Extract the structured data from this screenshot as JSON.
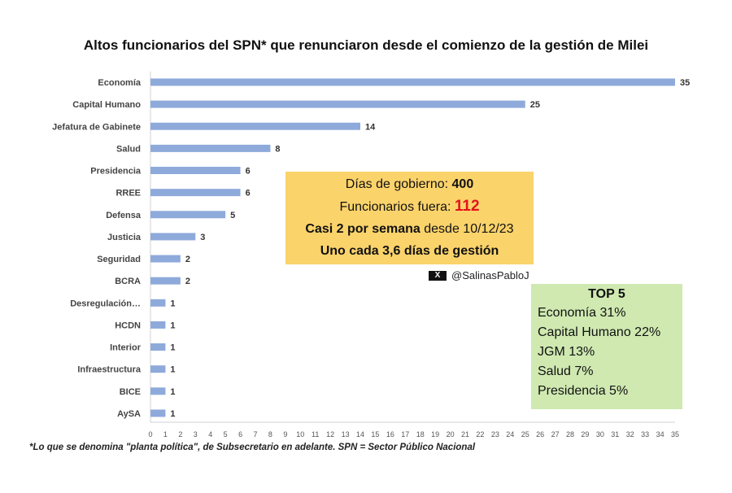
{
  "title": "Altos funcionarios del SPN* que renunciaron desde el comienzo de la gestión de Milei",
  "footnote": "*Lo que se denomina \"planta política\", de Subsecretario en adelante. SPN = Sector Público Nacional",
  "chart_data": {
    "type": "bar",
    "orientation": "horizontal",
    "categories": [
      "Economía",
      "Capital Humano",
      "Jefatura de Gabinete",
      "Salud",
      "Presidencia",
      "RREE",
      "Defensa",
      "Justicia",
      "Seguridad",
      "BCRA",
      "Desregulación…",
      "HCDN",
      "Interior",
      "Infraestructura",
      "BICE",
      "AySA"
    ],
    "values": [
      35,
      25,
      14,
      8,
      6,
      6,
      5,
      3,
      2,
      2,
      1,
      1,
      1,
      1,
      1,
      1
    ],
    "xlim": [
      0,
      35
    ],
    "xticks": [
      0,
      1,
      2,
      3,
      4,
      5,
      6,
      7,
      8,
      9,
      10,
      11,
      12,
      13,
      14,
      15,
      16,
      17,
      18,
      19,
      20,
      21,
      22,
      23,
      24,
      25,
      26,
      27,
      28,
      29,
      30,
      31,
      32,
      33,
      34,
      35
    ],
    "bar_color": "#8eaadb",
    "grid": false
  },
  "infobox": {
    "line1_label": "Días de gobierno: ",
    "line1_value": "400",
    "line2_label": "Funcionarios fuera: ",
    "line2_value": "112",
    "line3_bold": "Casi 2 por semana",
    "line3_rest": " desde 10/12/23",
    "line4": "Uno cada 3,6 días de gestión",
    "background": "#fbd36b",
    "highlight": "#e3141c"
  },
  "handle": {
    "icon": "x-logo-icon",
    "logo_text": "X",
    "text": "@SalinasPabloJ"
  },
  "top5": {
    "title": "TOP 5",
    "items": [
      "Economía 31%",
      "Capital Humano 22%",
      "JGM 13%",
      "Salud 7%",
      "Presidencia 5%"
    ],
    "background": "#cfe9b1"
  }
}
